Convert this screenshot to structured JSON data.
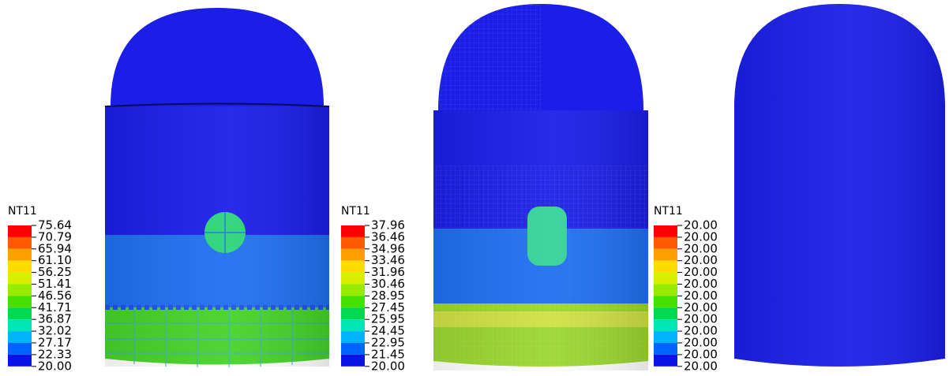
{
  "panels": [
    {
      "legend": {
        "title": "NT11",
        "labels": [
          "75.64",
          "70.79",
          "65.94",
          "61.10",
          "56.25",
          "51.41",
          "46.56",
          "41.71",
          "36.87",
          "32.02",
          "27.17",
          "22.33",
          "20.00"
        ]
      }
    },
    {
      "legend": {
        "title": "NT11",
        "labels": [
          "37.96",
          "36.46",
          "34.96",
          "33.46",
          "31.96",
          "30.46",
          "28.95",
          "27.45",
          "25.95",
          "24.45",
          "22.95",
          "21.45",
          "20.00"
        ]
      }
    },
    {
      "legend": {
        "title": "NT11",
        "labels": [
          "20.00",
          "20.00",
          "20.00",
          "20.00",
          "20.00",
          "20.00",
          "20.00",
          "20.00",
          "20.00",
          "20.00",
          "20.00",
          "20.00",
          "20.00"
        ]
      }
    }
  ]
}
